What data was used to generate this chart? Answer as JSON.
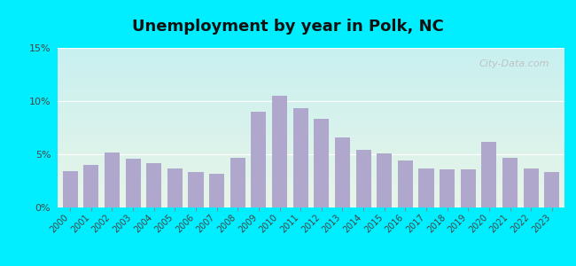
{
  "title": "Unemployment by year in Polk, NC",
  "years": [
    2000,
    2001,
    2002,
    2003,
    2004,
    2005,
    2006,
    2007,
    2008,
    2009,
    2010,
    2011,
    2012,
    2013,
    2014,
    2015,
    2016,
    2017,
    2018,
    2019,
    2020,
    2021,
    2022,
    2023
  ],
  "values": [
    3.4,
    4.0,
    5.2,
    4.6,
    4.2,
    3.7,
    3.3,
    3.2,
    4.7,
    9.0,
    10.5,
    9.3,
    8.3,
    6.6,
    5.4,
    5.1,
    4.4,
    3.7,
    3.6,
    3.6,
    6.2,
    4.7,
    3.7,
    3.3
  ],
  "bar_color": "#b0a8cc",
  "ylim": [
    0,
    15
  ],
  "yticks": [
    0,
    5,
    10,
    15
  ],
  "ytick_labels": [
    "0%",
    "5%",
    "10%",
    "15%"
  ],
  "title_fontsize": 13,
  "outer_bg": "#00eeff",
  "grad_top": "#c8f0f0",
  "grad_bottom": "#e8f5e8",
  "watermark": "City-Data.com"
}
